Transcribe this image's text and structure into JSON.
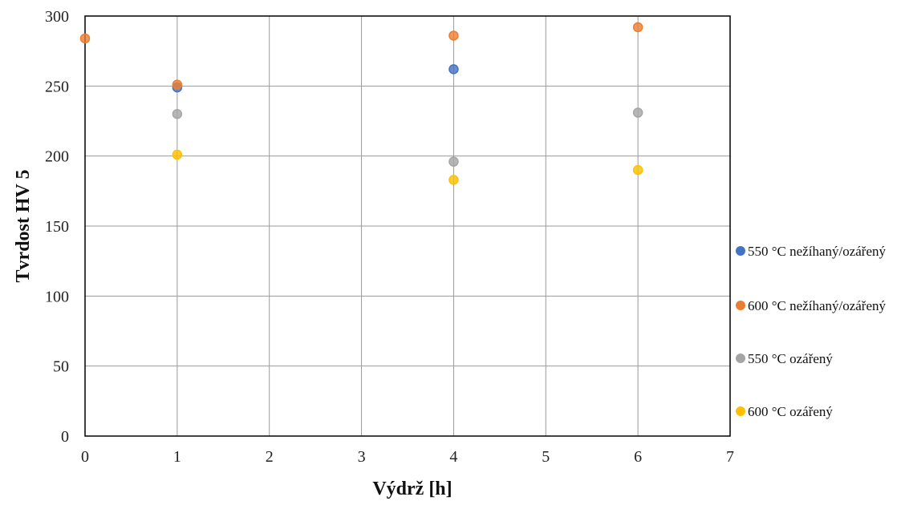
{
  "chart_data": {
    "type": "scatter",
    "title": "",
    "xlabel": "Výdrž [h]",
    "ylabel": "Tvrdost HV 5",
    "xlim": [
      0,
      7
    ],
    "ylim": [
      0,
      300
    ],
    "x_ticks": [
      "0",
      "1",
      "2",
      "3",
      "4",
      "5",
      "6",
      "7"
    ],
    "y_ticks": [
      "0",
      "50",
      "100",
      "150",
      "200",
      "250",
      "300"
    ],
    "grid": true,
    "legend_position": "right",
    "series": [
      {
        "name": "550 °C nežíhaný/ozářený",
        "color": "#4472c4",
        "points": [
          {
            "x": 1,
            "y": 249
          },
          {
            "x": 4,
            "y": 262
          }
        ]
      },
      {
        "name": "600 °C nežíhaný/ozářený",
        "color": "#ed7d31",
        "points": [
          {
            "x": 0,
            "y": 284
          },
          {
            "x": 1,
            "y": 251
          },
          {
            "x": 4,
            "y": 286
          },
          {
            "x": 6,
            "y": 292
          }
        ]
      },
      {
        "name": "550 °C ozářený",
        "color": "#a5a5a5",
        "points": [
          {
            "x": 1,
            "y": 230
          },
          {
            "x": 4,
            "y": 196
          },
          {
            "x": 6,
            "y": 231
          }
        ]
      },
      {
        "name": "600 °C ozářený",
        "color": "#ffc000",
        "points": [
          {
            "x": 1,
            "y": 201
          },
          {
            "x": 4,
            "y": 183
          },
          {
            "x": 6,
            "y": 190
          }
        ]
      }
    ]
  }
}
